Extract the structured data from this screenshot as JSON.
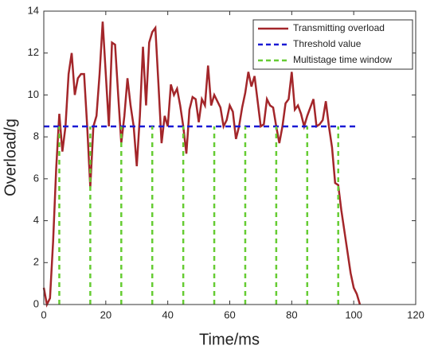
{
  "chart_data": {
    "type": "line",
    "xlabel": "Time/ms",
    "ylabel": "Overload/g",
    "xlim": [
      0,
      120
    ],
    "xticks": [
      0,
      20,
      40,
      60,
      80,
      100,
      120
    ],
    "ylim": [
      0,
      14
    ],
    "yticks": [
      0,
      2,
      4,
      6,
      8,
      10,
      12,
      14
    ],
    "legend": "northeast",
    "series": [
      {
        "name": "Transmitting overload",
        "color": "#a3262a",
        "style": "solid",
        "x": [
          0,
          1,
          2,
          3,
          4,
          5,
          6,
          7,
          8,
          9,
          10,
          11,
          12,
          13,
          14,
          15,
          16,
          17,
          18,
          19,
          20,
          21,
          22,
          23,
          24,
          25,
          26,
          27,
          28,
          29,
          30,
          31,
          32,
          33,
          34,
          35,
          36,
          37,
          38,
          39,
          40,
          41,
          42,
          43,
          44,
          45,
          46,
          47,
          48,
          49,
          50,
          51,
          52,
          53,
          54,
          55,
          56,
          57,
          58,
          59,
          60,
          61,
          62,
          63,
          64,
          65,
          66,
          67,
          68,
          69,
          70,
          71,
          72,
          73,
          74,
          75,
          76,
          77,
          78,
          79,
          80,
          81,
          82,
          83,
          84,
          85,
          86,
          87,
          88,
          89,
          90,
          91,
          92,
          93,
          94,
          95,
          96,
          97,
          98,
          99,
          100,
          101,
          102
        ],
        "values": [
          0.8,
          0,
          0.3,
          3,
          6.5,
          9.1,
          7.3,
          8.5,
          11,
          12,
          10,
          10.8,
          11,
          11,
          8.5,
          5.6,
          8.5,
          9,
          11,
          13.5,
          11,
          8.5,
          12.5,
          12.4,
          10,
          7.7,
          9,
          10.8,
          9.5,
          8.5,
          6.6,
          9,
          12.3,
          9.5,
          12.5,
          13,
          13.2,
          10.5,
          7.7,
          9,
          8.5,
          10.5,
          10,
          10.3,
          9.5,
          8.5,
          7.2,
          9.3,
          9.9,
          9.8,
          8.7,
          9.8,
          9.5,
          11.4,
          9.5,
          10,
          9.7,
          9.4,
          8.5,
          8.8,
          9.5,
          9.2,
          7.9,
          8.5,
          9.4,
          10.1,
          11.1,
          10.4,
          10.9,
          9.7,
          8.5,
          8.6,
          9.8,
          9.5,
          9.4,
          8.5,
          7.7,
          8.5,
          9.6,
          9.8,
          11.1,
          9.3,
          9.5,
          9.1,
          8.5,
          9,
          9.4,
          9.8,
          8.5,
          8.6,
          8.8,
          9.7,
          8.5,
          7.5,
          5.8,
          5.7,
          4.5,
          3.5,
          2.5,
          1.5,
          0.8,
          0.5,
          0
        ]
      },
      {
        "name": "Threshold value",
        "color": "#1a1ad4",
        "style": "dashed",
        "x": [
          0,
          101
        ],
        "values": [
          8.5,
          8.5
        ]
      },
      {
        "name": "Multistage time window",
        "color": "#66cc33",
        "style": "vlines",
        "x": [
          5,
          15,
          25,
          35,
          45,
          55,
          65,
          75,
          85,
          95
        ],
        "values": [
          8.5,
          8.5,
          8.5,
          8.5,
          8.5,
          8.5,
          8.5,
          8.5,
          8.5,
          8.5
        ]
      }
    ]
  }
}
